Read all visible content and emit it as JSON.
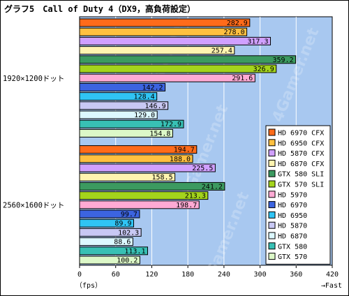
{
  "chart_data": {
    "type": "bar",
    "orientation": "horizontal",
    "title": "グラフ5　Call of Duty 4（DX9，高負荷設定）",
    "xlabel": "（fps）",
    "x_direction_label": "→Fast",
    "xlim": [
      0,
      420
    ],
    "xticks": [
      0,
      60,
      120,
      180,
      240,
      300,
      360,
      420
    ],
    "grid": true,
    "legend_position": "right",
    "watermark": "4Gamer.net",
    "colors": {
      "plot_background": "#a8c8f0",
      "gridline": "#ffffff"
    },
    "categories": [
      "1920×1200ドット",
      "2560×1600ドット"
    ],
    "series": [
      {
        "name": "HD 6970 CFX",
        "color": "#ff6b1a",
        "values": [
          282.9,
          194.7
        ]
      },
      {
        "name": "HD 6950 CFX",
        "color": "#ffc040",
        "values": [
          278.0,
          188.0
        ]
      },
      {
        "name": "HD 5870 CFX",
        "color": "#d0a0ff",
        "values": [
          317.3,
          225.5
        ]
      },
      {
        "name": "HD 6870 CFX",
        "color": "#fff4b0",
        "values": [
          257.4,
          158.5
        ]
      },
      {
        "name": "GTX 580 SLI",
        "color": "#3c9a60",
        "values": [
          359.2,
          241.2
        ]
      },
      {
        "name": "GTX 570 SLI",
        "color": "#a4d41c",
        "values": [
          326.9,
          213.3
        ]
      },
      {
        "name": "HD 5970",
        "color": "#ffaad4",
        "values": [
          291.6,
          198.7
        ]
      },
      {
        "name": "HD 6970",
        "color": "#3c64e0",
        "values": [
          142.2,
          99.7
        ]
      },
      {
        "name": "HD 6950",
        "color": "#30c4f4",
        "values": [
          128.4,
          89.9
        ]
      },
      {
        "name": "HD 5870",
        "color": "#c8c8f4",
        "values": [
          146.9,
          102.3
        ]
      },
      {
        "name": "HD 6870",
        "color": "#dcf8ff",
        "values": [
          129.0,
          88.6
        ]
      },
      {
        "name": "GTX 580",
        "color": "#38c0b4",
        "values": [
          172.9,
          113.1
        ]
      },
      {
        "name": "GTX 570",
        "color": "#dcf8c8",
        "values": [
          154.8,
          100.2
        ]
      }
    ]
  }
}
